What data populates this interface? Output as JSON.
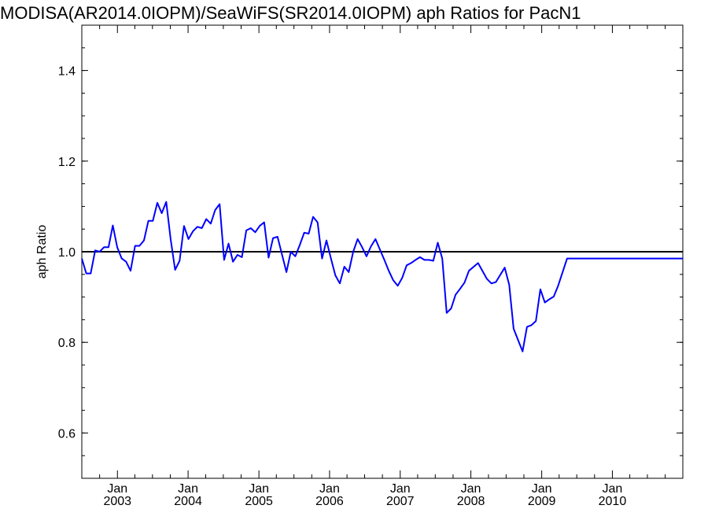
{
  "chart_data": {
    "type": "line",
    "title": "MODISA(AR2014.0IOPM)/SeaWiFS(SR2014.0IOPM)  aph Ratios for PacN1",
    "xlabel": "",
    "ylabel": "aph Ratio",
    "ylim": [
      0.5,
      1.5
    ],
    "xlim": [
      "2002-07-01",
      "2010-12-31"
    ],
    "grid": false,
    "yticks": [
      {
        "value": 0.6,
        "label": "0.6"
      },
      {
        "value": 0.8,
        "label": "0.8"
      },
      {
        "value": 1.0,
        "label": "1.0"
      },
      {
        "value": 1.2,
        "label": "1.2"
      },
      {
        "value": 1.4,
        "label": "1.4"
      }
    ],
    "xticks": [
      {
        "date": "2003-01-01",
        "month": "Jan",
        "year": "2003"
      },
      {
        "date": "2004-01-01",
        "month": "Jan",
        "year": "2004"
      },
      {
        "date": "2005-01-01",
        "month": "Jan",
        "year": "2005"
      },
      {
        "date": "2006-01-01",
        "month": "Jan",
        "year": "2006"
      },
      {
        "date": "2007-01-01",
        "month": "Jan",
        "year": "2007"
      },
      {
        "date": "2008-01-01",
        "month": "Jan",
        "year": "2008"
      },
      {
        "date": "2009-01-01",
        "month": "Jan",
        "year": "2009"
      },
      {
        "date": "2010-01-01",
        "month": "Jan",
        "year": "2010"
      }
    ],
    "reference_line": {
      "y": 1.0,
      "color": "#000000"
    },
    "series": [
      {
        "color": "#0000ff",
        "x": [
          "2002-07-01",
          "2002-07-24",
          "2002-08-16",
          "2002-09-08",
          "2002-10-01",
          "2002-10-24",
          "2002-11-16",
          "2002-12-08",
          "2002-12-31",
          "2003-01-23",
          "2003-02-15",
          "2003-03-10",
          "2003-04-02",
          "2003-04-25",
          "2003-05-18",
          "2003-06-10",
          "2003-07-03",
          "2003-07-26",
          "2003-08-18",
          "2003-09-10",
          "2003-10-03",
          "2003-10-26",
          "2003-11-18",
          "2003-12-11",
          "2004-01-03",
          "2004-01-26",
          "2004-02-18",
          "2004-03-12",
          "2004-04-04",
          "2004-04-27",
          "2004-05-20",
          "2004-06-12",
          "2004-07-05",
          "2004-07-28",
          "2004-08-20",
          "2004-09-12",
          "2004-10-05",
          "2004-10-28",
          "2004-11-20",
          "2004-12-13",
          "2005-01-05",
          "2005-01-28",
          "2005-02-20",
          "2005-03-15",
          "2005-04-07",
          "2005-05-23",
          "2005-06-15",
          "2005-07-08",
          "2005-07-31",
          "2005-08-23",
          "2005-09-15",
          "2005-10-08",
          "2005-10-31",
          "2005-11-23",
          "2005-12-16",
          "2006-01-08",
          "2006-01-31",
          "2006-02-23",
          "2006-03-18",
          "2006-04-10",
          "2006-05-03",
          "2006-05-26",
          "2006-06-18",
          "2006-07-11",
          "2006-08-03",
          "2006-08-26",
          "2006-09-18",
          "2006-10-11",
          "2006-11-03",
          "2006-11-26",
          "2006-12-19",
          "2007-01-11",
          "2007-02-03",
          "2007-02-26",
          "2007-03-21",
          "2007-04-13",
          "2007-05-06",
          "2007-05-29",
          "2007-06-21",
          "2007-07-14",
          "2007-08-06",
          "2007-08-29",
          "2007-09-21",
          "2007-10-14",
          "2007-11-06",
          "2007-11-29",
          "2007-12-22",
          "2008-02-07",
          "2008-03-24",
          "2008-04-16",
          "2008-05-09",
          "2008-06-24",
          "2008-07-17",
          "2008-08-09",
          "2008-09-24",
          "2008-10-17",
          "2008-11-09",
          "2008-12-02",
          "2008-12-25",
          "2009-01-17",
          "2009-02-09",
          "2009-03-04",
          "2009-03-27",
          "2009-05-12",
          "2009-06-04",
          "2009-06-27",
          "2009-07-20",
          "2009-08-12",
          "2009-09-04",
          "2009-09-27",
          "2009-10-20",
          "2009-11-12",
          "2009-12-05",
          "2009-12-28",
          "2010-01-20",
          "2010-02-12",
          "2010-03-07",
          "2010-03-30",
          "2010-04-22",
          "2010-06-07",
          "2010-06-30",
          "2010-07-23",
          "2010-08-15",
          "2010-09-30",
          "2010-10-23",
          "2010-11-15",
          "2010-12-31"
        ],
        "values": [
          0.985,
          0.952,
          0.952,
          1.003,
          1.0,
          1.01,
          1.01,
          1.058,
          1.01,
          0.985,
          0.978,
          0.958,
          1.013,
          1.013,
          1.025,
          1.068,
          1.068,
          1.108,
          1.085,
          1.11,
          1.028,
          0.96,
          0.98,
          1.057,
          1.028,
          1.045,
          1.055,
          1.052,
          1.072,
          1.062,
          1.092,
          1.105,
          0.982,
          1.018,
          0.978,
          0.993,
          0.988,
          1.047,
          1.052,
          1.043,
          1.057,
          1.065,
          0.987,
          1.03,
          1.033,
          0.955,
          1.0,
          0.99,
          1.015,
          1.042,
          1.04,
          1.077,
          1.065,
          0.985,
          1.025,
          0.985,
          0.948,
          0.93,
          0.967,
          0.955,
          1.0,
          1.028,
          1.01,
          0.99,
          1.012,
          1.028,
          1.005,
          0.982,
          0.958,
          0.937,
          0.925,
          0.942,
          0.97,
          0.975,
          0.982,
          0.988,
          0.982,
          0.982,
          0.98,
          1.02,
          0.985,
          0.865,
          0.875,
          0.905,
          0.918,
          0.932,
          0.958,
          0.975,
          0.94,
          0.93,
          0.933,
          0.965,
          0.927,
          0.83,
          0.78,
          0.834,
          0.838,
          0.847,
          0.917,
          0.888,
          0.895,
          0.901,
          0.925,
          0.985,
          0.985,
          0.985,
          0.985,
          0.985,
          0.985,
          0.985,
          0.985,
          0.985,
          0.985,
          0.985,
          0.985,
          0.985,
          0.985,
          0.985,
          0.985,
          0.985,
          0.985,
          0.985,
          0.985,
          0.985,
          0.985,
          0.985,
          0.985
        ]
      }
    ]
  }
}
